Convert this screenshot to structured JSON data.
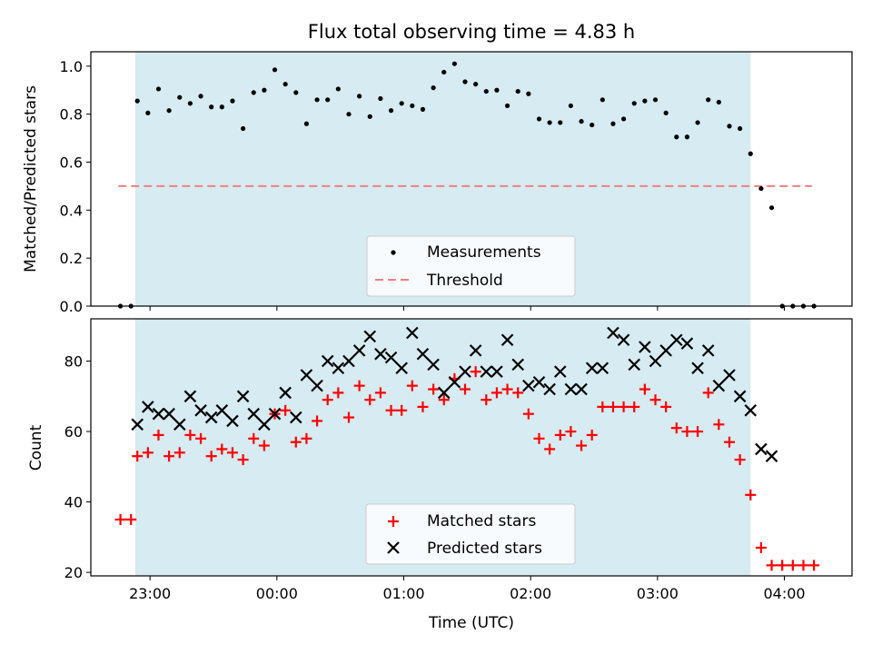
{
  "chart_data": [
    {
      "type": "scatter",
      "title": "Flux total observing time = 4.83 h",
      "xlabel": "",
      "ylabel": "Matched/Predicted stars",
      "ylim": [
        0.0,
        1.06
      ],
      "yticks": [
        "0.0",
        "0.2",
        "0.4",
        "0.6",
        "0.8",
        "1.0"
      ],
      "ytick_values": [
        0.0,
        0.2,
        0.4,
        0.6,
        0.8,
        1.0
      ],
      "shaded_interval": [
        "22:53",
        "03:44"
      ],
      "shade_color": "#add8e6",
      "threshold": {
        "name": "Threshold",
        "value": 0.5,
        "x_start": "22:45",
        "x_end": "04:13",
        "color": "#f08080"
      },
      "series": [
        {
          "name": "Measurements",
          "marker": "dot",
          "color": "#000000",
          "x": [
            "22:46",
            "22:51",
            "22:54",
            "22:59",
            "23:04",
            "23:09",
            "23:14",
            "23:19",
            "23:24",
            "23:29",
            "23:34",
            "23:39",
            "23:44",
            "23:49",
            "23:54",
            "23:59",
            "00:04",
            "00:09",
            "00:14",
            "00:19",
            "00:24",
            "00:29",
            "00:34",
            "00:39",
            "00:44",
            "00:49",
            "00:54",
            "00:59",
            "01:04",
            "01:09",
            "01:14",
            "01:19",
            "01:24",
            "01:29",
            "01:34",
            "01:39",
            "01:44",
            "01:49",
            "01:54",
            "01:59",
            "02:04",
            "02:09",
            "02:14",
            "02:19",
            "02:24",
            "02:29",
            "02:34",
            "02:39",
            "02:44",
            "02:49",
            "02:54",
            "02:59",
            "03:04",
            "03:09",
            "03:14",
            "03:19",
            "03:24",
            "03:29",
            "03:34",
            "03:39",
            "03:44",
            "03:49",
            "03:54",
            "03:59",
            "04:04",
            "04:09",
            "04:14"
          ],
          "y": [
            0.0,
            0.0,
            0.855,
            0.805,
            0.905,
            0.815,
            0.87,
            0.845,
            0.875,
            0.83,
            0.83,
            0.855,
            0.74,
            0.89,
            0.9,
            0.985,
            0.925,
            0.89,
            0.76,
            0.86,
            0.86,
            0.905,
            0.8,
            0.875,
            0.79,
            0.865,
            0.815,
            0.845,
            0.835,
            0.82,
            0.91,
            0.975,
            1.01,
            0.935,
            0.925,
            0.895,
            0.9,
            0.835,
            0.895,
            0.885,
            0.78,
            0.765,
            0.765,
            0.835,
            0.77,
            0.755,
            0.86,
            0.76,
            0.78,
            0.845,
            0.855,
            0.86,
            0.805,
            0.705,
            0.705,
            0.765,
            0.86,
            0.85,
            0.75,
            0.74,
            0.635,
            0.49,
            0.41,
            0.0,
            0.0,
            0.0,
            0.0
          ]
        }
      ],
      "legend": {
        "position": "lower center",
        "entries": [
          "Measurements",
          "Threshold"
        ]
      }
    },
    {
      "type": "scatter",
      "title": "",
      "xlabel": "Time (UTC)",
      "ylabel": "Count",
      "ylim": [
        19,
        92
      ],
      "yticks": [
        "20",
        "40",
        "60",
        "80"
      ],
      "ytick_values": [
        20,
        40,
        60,
        80
      ],
      "xticks": [
        "23:00",
        "00:00",
        "01:00",
        "02:00",
        "03:00",
        "04:00"
      ],
      "xtick_values": [
        "23:00",
        "00:00",
        "01:00",
        "02:00",
        "03:00",
        "04:00"
      ],
      "xlim": [
        "22:32",
        "04:32"
      ],
      "shaded_interval": [
        "22:53",
        "03:44"
      ],
      "shade_color": "#add8e6",
      "series": [
        {
          "name": "Matched stars",
          "marker": "plus",
          "color": "#ff0000",
          "x": [
            "22:46",
            "22:51",
            "22:54",
            "22:59",
            "23:04",
            "23:09",
            "23:14",
            "23:19",
            "23:24",
            "23:29",
            "23:34",
            "23:39",
            "23:44",
            "23:49",
            "23:54",
            "23:59",
            "00:04",
            "00:09",
            "00:14",
            "00:19",
            "00:24",
            "00:29",
            "00:34",
            "00:39",
            "00:44",
            "00:49",
            "00:54",
            "00:59",
            "01:04",
            "01:09",
            "01:14",
            "01:19",
            "01:24",
            "01:29",
            "01:34",
            "01:39",
            "01:44",
            "01:49",
            "01:54",
            "01:59",
            "02:04",
            "02:09",
            "02:14",
            "02:19",
            "02:24",
            "02:29",
            "02:34",
            "02:39",
            "02:44",
            "02:49",
            "02:54",
            "02:59",
            "03:04",
            "03:09",
            "03:14",
            "03:19",
            "03:24",
            "03:29",
            "03:34",
            "03:39",
            "03:44",
            "03:49",
            "03:54",
            "03:59",
            "04:04",
            "04:09",
            "04:14"
          ],
          "y": [
            35,
            35,
            53,
            54,
            59,
            53,
            54,
            59,
            58,
            53,
            55,
            54,
            52,
            58,
            56,
            65,
            66,
            57,
            58,
            63,
            69,
            71,
            64,
            73,
            69,
            71,
            66,
            66,
            73,
            67,
            72,
            69,
            75,
            72,
            77,
            69,
            71,
            72,
            71,
            65,
            58,
            55,
            59,
            60,
            56,
            59,
            67,
            67,
            67,
            67,
            72,
            69,
            67,
            61,
            60,
            60,
            71,
            62,
            57,
            52,
            42,
            27,
            22,
            22,
            22,
            22,
            22
          ]
        },
        {
          "name": "Predicted stars",
          "marker": "x",
          "color": "#000000",
          "x": [
            "22:54",
            "22:59",
            "23:04",
            "23:09",
            "23:14",
            "23:19",
            "23:24",
            "23:29",
            "23:34",
            "23:39",
            "23:44",
            "23:49",
            "23:54",
            "23:59",
            "00:04",
            "00:09",
            "00:14",
            "00:19",
            "00:24",
            "00:29",
            "00:34",
            "00:39",
            "00:44",
            "00:49",
            "00:54",
            "00:59",
            "01:04",
            "01:09",
            "01:14",
            "01:19",
            "01:24",
            "01:29",
            "01:34",
            "01:39",
            "01:44",
            "01:49",
            "01:54",
            "01:59",
            "02:04",
            "02:09",
            "02:14",
            "02:19",
            "02:24",
            "02:29",
            "02:34",
            "02:39",
            "02:44",
            "02:49",
            "02:54",
            "02:59",
            "03:04",
            "03:09",
            "03:14",
            "03:19",
            "03:24",
            "03:29",
            "03:34",
            "03:39",
            "03:44",
            "03:49",
            "03:54"
          ],
          "y": [
            62,
            67,
            65,
            65,
            62,
            70,
            66,
            64,
            66,
            63,
            70,
            65,
            62,
            65,
            71,
            64,
            76,
            73,
            80,
            78,
            80,
            83,
            87,
            82,
            81,
            78,
            88,
            82,
            79,
            71,
            74,
            77,
            83,
            77,
            77,
            86,
            79,
            73,
            74,
            72,
            77,
            72,
            72,
            78,
            78,
            88,
            86,
            79,
            84,
            80,
            83,
            86,
            85,
            78,
            83,
            73,
            76,
            70,
            66,
            55,
            53
          ]
        }
      ],
      "legend": {
        "position": "lower center",
        "entries": [
          "Matched stars",
          "Predicted stars"
        ]
      }
    }
  ]
}
